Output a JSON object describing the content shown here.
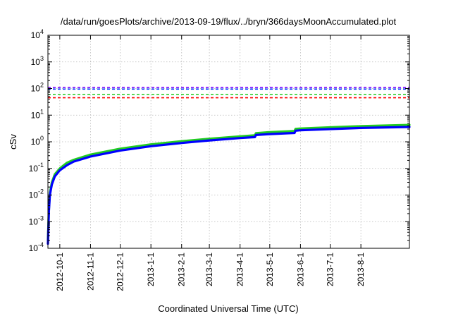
{
  "chart_data": {
    "type": "line",
    "title": "/data/run/goesPlots/archive/2013-09-19/flux/../bryn/366daysMoonAccumulated.plot",
    "xlabel": "Coordinated Universal Time (UTC)",
    "ylabel": "cSv",
    "yscale": "log",
    "ylim": [
      0.0001,
      10000
    ],
    "xlim": [
      "2012-09-19",
      "2013-09-19"
    ],
    "grid": true,
    "y_ticks": [
      {
        "base": "10",
        "exp": "-4",
        "value": 0.0001
      },
      {
        "base": "10",
        "exp": "-3",
        "value": 0.001
      },
      {
        "base": "10",
        "exp": "-2",
        "value": 0.01
      },
      {
        "base": "10",
        "exp": "-1",
        "value": 0.1
      },
      {
        "base": "10",
        "exp": "0",
        "value": 1
      },
      {
        "base": "10",
        "exp": "1",
        "value": 10
      },
      {
        "base": "10",
        "exp": "2",
        "value": 100
      },
      {
        "base": "10",
        "exp": "3",
        "value": 1000
      },
      {
        "base": "10",
        "exp": "4",
        "value": 10000
      }
    ],
    "x_ticks": [
      {
        "label": "2012-10-1",
        "date": "2012-10-01"
      },
      {
        "label": "2012-11-1",
        "date": "2012-11-01"
      },
      {
        "label": "2012-12-1",
        "date": "2012-12-01"
      },
      {
        "label": "2013-1-1",
        "date": "2013-01-01"
      },
      {
        "label": "2013-2-1",
        "date": "2013-02-01"
      },
      {
        "label": "2013-3-1",
        "date": "2013-03-01"
      },
      {
        "label": "2013-4-1",
        "date": "2013-04-01"
      },
      {
        "label": "2013-5-1",
        "date": "2013-05-01"
      },
      {
        "label": "2013-6-1",
        "date": "2013-06-01"
      },
      {
        "label": "2013-7-1",
        "date": "2013-07-01"
      },
      {
        "label": "2013-8-1",
        "date": "2013-08-01"
      }
    ],
    "reference_lines": [
      {
        "color": "#7f00ff",
        "y": 110,
        "style": "dashed"
      },
      {
        "color": "#0033ff",
        "y": 95,
        "style": "dashed"
      },
      {
        "color": "#22cc22",
        "y": 60,
        "style": "dashed"
      },
      {
        "color": "#ff0000",
        "y": 45,
        "style": "dashed"
      }
    ],
    "series": [
      {
        "color": "#22cc22",
        "points": [
          [
            "2012-09-19",
            0.0002
          ],
          [
            "2012-09-20",
            0.003
          ],
          [
            "2012-09-21",
            0.012
          ],
          [
            "2012-09-23",
            0.03
          ],
          [
            "2012-09-26",
            0.06
          ],
          [
            "2012-10-01",
            0.1
          ],
          [
            "2012-10-08",
            0.16
          ],
          [
            "2012-10-15",
            0.21
          ],
          [
            "2012-11-01",
            0.33
          ],
          [
            "2012-12-01",
            0.55
          ],
          [
            "2013-01-01",
            0.8
          ],
          [
            "2013-02-01",
            1.05
          ],
          [
            "2013-03-01",
            1.3
          ],
          [
            "2013-04-01",
            1.6
          ],
          [
            "2013-04-16",
            1.75
          ],
          [
            "2013-04-17",
            2.1
          ],
          [
            "2013-05-01",
            2.3
          ],
          [
            "2013-05-26",
            2.55
          ],
          [
            "2013-05-27",
            3.05
          ],
          [
            "2013-06-01",
            3.15
          ],
          [
            "2013-07-01",
            3.5
          ],
          [
            "2013-08-01",
            3.85
          ],
          [
            "2013-09-19",
            4.3
          ]
        ]
      },
      {
        "color": "#0000ff",
        "points": [
          [
            "2012-09-19",
            0.00015
          ],
          [
            "2012-09-20",
            0.0025
          ],
          [
            "2012-09-21",
            0.01
          ],
          [
            "2012-09-23",
            0.025
          ],
          [
            "2012-09-26",
            0.05
          ],
          [
            "2012-10-01",
            0.085
          ],
          [
            "2012-10-08",
            0.13
          ],
          [
            "2012-10-15",
            0.18
          ],
          [
            "2012-11-01",
            0.28
          ],
          [
            "2012-12-01",
            0.47
          ],
          [
            "2013-01-01",
            0.68
          ],
          [
            "2013-02-01",
            0.9
          ],
          [
            "2013-03-01",
            1.12
          ],
          [
            "2013-04-01",
            1.38
          ],
          [
            "2013-04-16",
            1.5
          ],
          [
            "2013-04-17",
            1.8
          ],
          [
            "2013-05-01",
            1.95
          ],
          [
            "2013-05-26",
            2.15
          ],
          [
            "2013-05-27",
            2.6
          ],
          [
            "2013-06-01",
            2.7
          ],
          [
            "2013-07-01",
            3.0
          ],
          [
            "2013-08-01",
            3.3
          ],
          [
            "2013-09-19",
            3.6
          ]
        ]
      }
    ],
    "colors": {
      "grid": "#b8b8b8",
      "frame": "#000000"
    }
  }
}
